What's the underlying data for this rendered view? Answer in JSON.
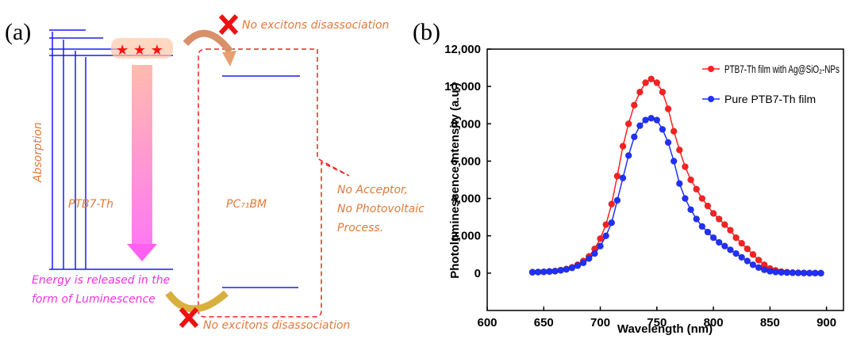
{
  "diagram": {
    "panel_label": "(a)",
    "top_note": "No excitons disassociation",
    "bottom_note": "No excitons disassociation",
    "absorption": "Absorption",
    "donor": "PTB7-Th",
    "acceptor": "PC₇₁BM",
    "callout": [
      "No Acceptor,",
      "No Photovoltaic",
      "Process."
    ],
    "luminescence": [
      "Energy is released in the",
      "form of Luminescence"
    ]
  },
  "chart_data": {
    "type": "line",
    "panel_label": "(b)",
    "xlabel": "Wavelength (nm)",
    "ylabel": "Photoluminescence Intensity (a.u.)",
    "x": [
      640,
      645,
      650,
      655,
      660,
      665,
      670,
      675,
      680,
      685,
      690,
      695,
      700,
      705,
      710,
      715,
      720,
      725,
      730,
      735,
      740,
      745,
      750,
      755,
      760,
      765,
      770,
      775,
      780,
      785,
      790,
      795,
      800,
      805,
      810,
      815,
      820,
      825,
      830,
      835,
      840,
      845,
      850,
      855,
      860,
      865,
      870,
      875,
      880,
      885,
      890,
      895
    ],
    "series": [
      {
        "name": "PTB7-Th film with Ag@SiO₂-NPs",
        "color": "#ff2020",
        "values": [
          50,
          60,
          70,
          90,
          110,
          160,
          220,
          310,
          450,
          650,
          900,
          1300,
          1850,
          2600,
          3700,
          5200,
          6800,
          8000,
          9000,
          9700,
          10200,
          10400,
          10200,
          9700,
          8800,
          7600,
          6600,
          5700,
          5000,
          4500,
          4000,
          3600,
          3200,
          2900,
          2600,
          2300,
          1900,
          1600,
          1300,
          1000,
          700,
          450,
          250,
          150,
          80,
          50,
          30,
          20,
          10,
          5,
          5,
          0
        ]
      },
      {
        "name": "Pure PTB7-Th film",
        "color": "#2030ff",
        "values": [
          50,
          60,
          70,
          90,
          110,
          150,
          200,
          280,
          400,
          550,
          780,
          1050,
          1450,
          2000,
          2700,
          3900,
          5100,
          6300,
          7300,
          7900,
          8200,
          8300,
          8200,
          7700,
          7000,
          6000,
          4800,
          4000,
          3400,
          2900,
          2500,
          2200,
          1900,
          1650,
          1450,
          1250,
          1050,
          850,
          650,
          450,
          300,
          180,
          100,
          60,
          40,
          30,
          20,
          15,
          10,
          5,
          5,
          0
        ]
      }
    ],
    "xlim": [
      600,
      915
    ],
    "ylim": [
      -2000,
      12000
    ],
    "xticks": [
      600,
      650,
      700,
      750,
      800,
      850,
      900
    ],
    "yticks": [
      0,
      {
        "value": 2000,
        "label": "2,000"
      },
      {
        "value": 4000,
        "label": "4,000"
      },
      {
        "value": 6000,
        "label": "6,000"
      },
      {
        "value": 8000,
        "label": "8,000"
      },
      {
        "value": 10000,
        "label": "10,000"
      },
      {
        "value": 12000,
        "label": "12,000"
      }
    ],
    "legend": "upper right"
  }
}
